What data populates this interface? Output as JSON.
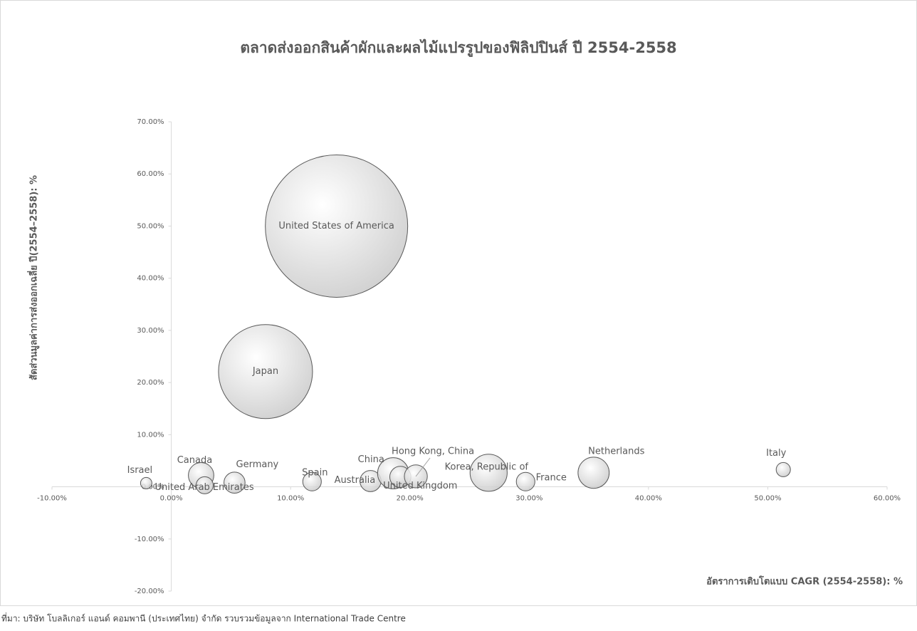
{
  "chart_data": {
    "type": "bubble",
    "title": "ตลาดส่งออกสินค้าผักและผลไม้แปรรูปของฟิลิปปินส์ ปี 2554-2558",
    "x_label": "อัตราการเติบโตแบบ CAGR (2554-2558): %",
    "y_label": "สัดส่วนมูลค่าการส่งออกเฉลี่ย ปี(2554–2558): %",
    "source": "ที่มา: บริษัท โบลลิเกอร์ แอนด์ คอมพานี (ประเทศไทย) จำกัด รวบรวมข้อมูลจาก International Trade Centre",
    "color": "#d9d9d9",
    "categories": [
      "United States of America",
      "Japan",
      "Israel",
      "Canada",
      "United Arab Emirates",
      "Germany",
      "Spain",
      "Australia",
      "China",
      "United Kingdom",
      "Hong Kong, China",
      "Korea, Republic of",
      "France",
      "Netherlands",
      "Italy"
    ],
    "x": [
      13.85,
      7.9,
      -2.1,
      2.5,
      2.8,
      5.3,
      11.8,
      16.7,
      18.6,
      19.2,
      20.5,
      26.6,
      29.7,
      35.4,
      51.3
    ],
    "values": [
      50,
      22.1,
      0.7,
      2.2,
      0.3,
      0.8,
      1.0,
      1.1,
      2.6,
      1.9,
      2.0,
      2.7,
      1.0,
      2.7,
      3.3
    ],
    "sizes": [
      50,
      21.8,
      0.32,
      1.6,
      0.72,
      1.1,
      0.85,
      1.1,
      2.4,
      1.1,
      1.3,
      3.4,
      0.85,
      2.4,
      0.5
    ],
    "xlim": [
      -10,
      60
    ],
    "xticks": [
      {
        "value": -10,
        "label": "-10.00%"
      },
      {
        "value": 0,
        "label": "0.00%"
      },
      {
        "value": 10,
        "label": "10.00%"
      },
      {
        "value": 20,
        "label": "20.00%"
      },
      {
        "value": 30,
        "label": "30.00%"
      },
      {
        "value": 40,
        "label": "40.00%"
      },
      {
        "value": 50,
        "label": "50.00%"
      },
      {
        "value": 60,
        "label": "60.00%"
      }
    ],
    "ylim": [
      -20,
      70
    ],
    "yticks": [
      {
        "value": -20,
        "label": "-20.00%"
      },
      {
        "value": -10,
        "label": "-10.00%"
      },
      {
        "value": 0,
        "label": "0.00%"
      },
      {
        "value": 10,
        "label": "10.00%"
      },
      {
        "value": 20,
        "label": "20.00%"
      },
      {
        "value": 30,
        "label": "30.00%"
      },
      {
        "value": 40,
        "label": "40.00%"
      },
      {
        "value": 50,
        "label": "50.00%"
      },
      {
        "value": 60,
        "label": "60.00%"
      },
      {
        "value": 70,
        "label": "70.00%"
      }
    ]
  }
}
